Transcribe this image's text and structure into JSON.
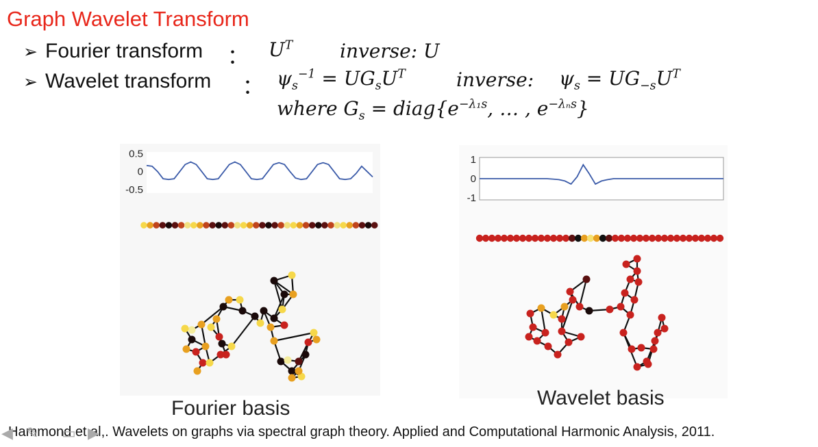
{
  "title": "Graph Wavelet Transform",
  "bullets": {
    "fourier": {
      "label": "Fourier transform",
      "colon": "：",
      "transform": "U",
      "transform_sup": "T",
      "inverse": "inverse: U"
    },
    "wavelet": {
      "label": "Wavelet transform",
      "colon": "：",
      "lhs_symbol": "ψ",
      "lhs_sub": "s",
      "lhs_sup": "−1",
      "rhs": "= UG",
      "rhs_sub": "s",
      "rhs_tail": "U",
      "rhs_sup": "T",
      "inverse_label": "inverse:",
      "inv_symbol": "ψ",
      "inv_sub": "s",
      "inv_rhs": "= UG",
      "inv_rhs_sub": "−s",
      "inv_tail": "U",
      "inv_sup": "T",
      "where_text": "where G",
      "where_sub": "s",
      "where_rhs": "= diag{e",
      "where_exp1": "−λ₁s",
      "where_mid": ", … , e",
      "where_exp2": "−λₙs",
      "where_end": "}"
    }
  },
  "arrow_glyph": "➢",
  "chart_data": [
    {
      "type": "line",
      "name": "fourier-signal",
      "y_ticks": [
        "0.5",
        "0",
        "-0.5"
      ],
      "ylim": [
        -0.6,
        0.55
      ],
      "x": [
        0,
        1,
        2,
        3,
        4,
        5,
        6,
        7,
        8,
        9,
        10,
        11,
        12,
        13,
        14,
        15,
        16,
        17,
        18,
        19,
        20,
        21,
        22,
        23,
        24,
        25,
        26,
        27,
        28,
        29,
        30,
        31,
        32,
        33,
        34,
        35,
        36,
        37,
        38,
        39,
        40,
        41
      ],
      "values": [
        0.17,
        0.15,
        0.0,
        -0.2,
        -0.22,
        -0.2,
        0.0,
        0.2,
        0.27,
        0.2,
        0.0,
        -0.2,
        -0.22,
        -0.2,
        0.0,
        0.2,
        0.27,
        0.2,
        0.0,
        -0.2,
        -0.22,
        -0.2,
        0.0,
        0.2,
        0.25,
        0.2,
        0.0,
        -0.18,
        -0.22,
        -0.2,
        0.0,
        0.2,
        0.25,
        0.2,
        0.0,
        -0.2,
        -0.22,
        -0.2,
        -0.05,
        0.15,
        0.0,
        -0.15
      ],
      "line_color": "#3a5aa8",
      "grid": false
    },
    {
      "type": "line",
      "name": "wavelet-signal",
      "y_ticks": [
        "1",
        "0",
        "-1"
      ],
      "ylim": [
        -1.1,
        1.1
      ],
      "x": [
        0,
        1,
        2,
        3,
        4,
        5,
        6,
        7,
        8,
        9,
        10,
        11,
        12,
        13,
        14,
        15,
        16,
        17,
        18,
        19,
        20,
        21,
        22,
        23,
        24,
        25,
        26,
        27,
        28,
        29,
        30,
        31,
        32,
        33,
        34,
        35,
        36,
        37,
        38,
        39,
        40
      ],
      "values": [
        0,
        0,
        0,
        0,
        0,
        0,
        0,
        0,
        0,
        0,
        0,
        0,
        -0.02,
        -0.05,
        -0.12,
        -0.28,
        0.1,
        0.72,
        0.25,
        -0.28,
        -0.12,
        -0.05,
        0,
        0,
        0,
        0,
        0,
        0,
        0,
        0,
        0,
        0,
        0,
        0,
        0,
        0,
        0,
        0,
        0,
        0,
        0
      ],
      "line_color": "#3a5aa8",
      "grid": false
    }
  ],
  "dot_rows": {
    "fourier": [
      "#f6d84a",
      "#e8a020",
      "#c0441c",
      "#5a1010",
      "#1a0a0a",
      "#5a1010",
      "#c0441c",
      "#f2e080",
      "#f6d84a",
      "#e8a020",
      "#c0441c",
      "#5a1010",
      "#1a0a0a",
      "#5a1010",
      "#c0441c",
      "#f2e080",
      "#f6d84a",
      "#e8a020",
      "#c0441c",
      "#5a1010",
      "#1a0a0a",
      "#5a1010",
      "#c0441c",
      "#f2e080",
      "#f6d84a",
      "#e8a020",
      "#c0441c",
      "#5a1010",
      "#1a0a0a",
      "#5a1010",
      "#c0441c",
      "#f2e080",
      "#f6d84a",
      "#e8a020",
      "#c0441c",
      "#5a1010",
      "#1a0a0a",
      "#5a1010"
    ],
    "wavelet": [
      "#c8221e",
      "#c8221e",
      "#c8221e",
      "#c8221e",
      "#c8221e",
      "#c8221e",
      "#c8221e",
      "#c8221e",
      "#c8221e",
      "#c8221e",
      "#c8221e",
      "#c8221e",
      "#c8221e",
      "#c8221e",
      "#c8221e",
      "#5a1010",
      "#111111",
      "#e8a020",
      "#f6e070",
      "#e8a020",
      "#111111",
      "#5a1010",
      "#c8221e",
      "#c8221e",
      "#c8221e",
      "#c8221e",
      "#c8221e",
      "#c8221e",
      "#c8221e",
      "#c8221e",
      "#c8221e",
      "#c8221e",
      "#c8221e",
      "#c8221e",
      "#c8221e",
      "#c8221e",
      "#c8221e",
      "#c8221e",
      "#c8221e",
      "#c8221e"
    ]
  },
  "captions": {
    "fourier": "Fourier basis",
    "wavelet": "Wavelet basis"
  },
  "citation": "Hammond et.al,. Wavelets on graphs via spectral graph theory. Applied and Computational Harmonic Analysis, 2011.",
  "nav_icons": [
    "prev-arrow-icon",
    "pen-icon",
    "slides-icon",
    "next-arrow-icon"
  ],
  "colors": {
    "title": "#e8261a",
    "line": "#3a5aa8",
    "node_red": "#c8221e",
    "node_dark": "#1a0a0a",
    "node_yellow": "#f6d84a",
    "node_orange": "#e8a020"
  }
}
